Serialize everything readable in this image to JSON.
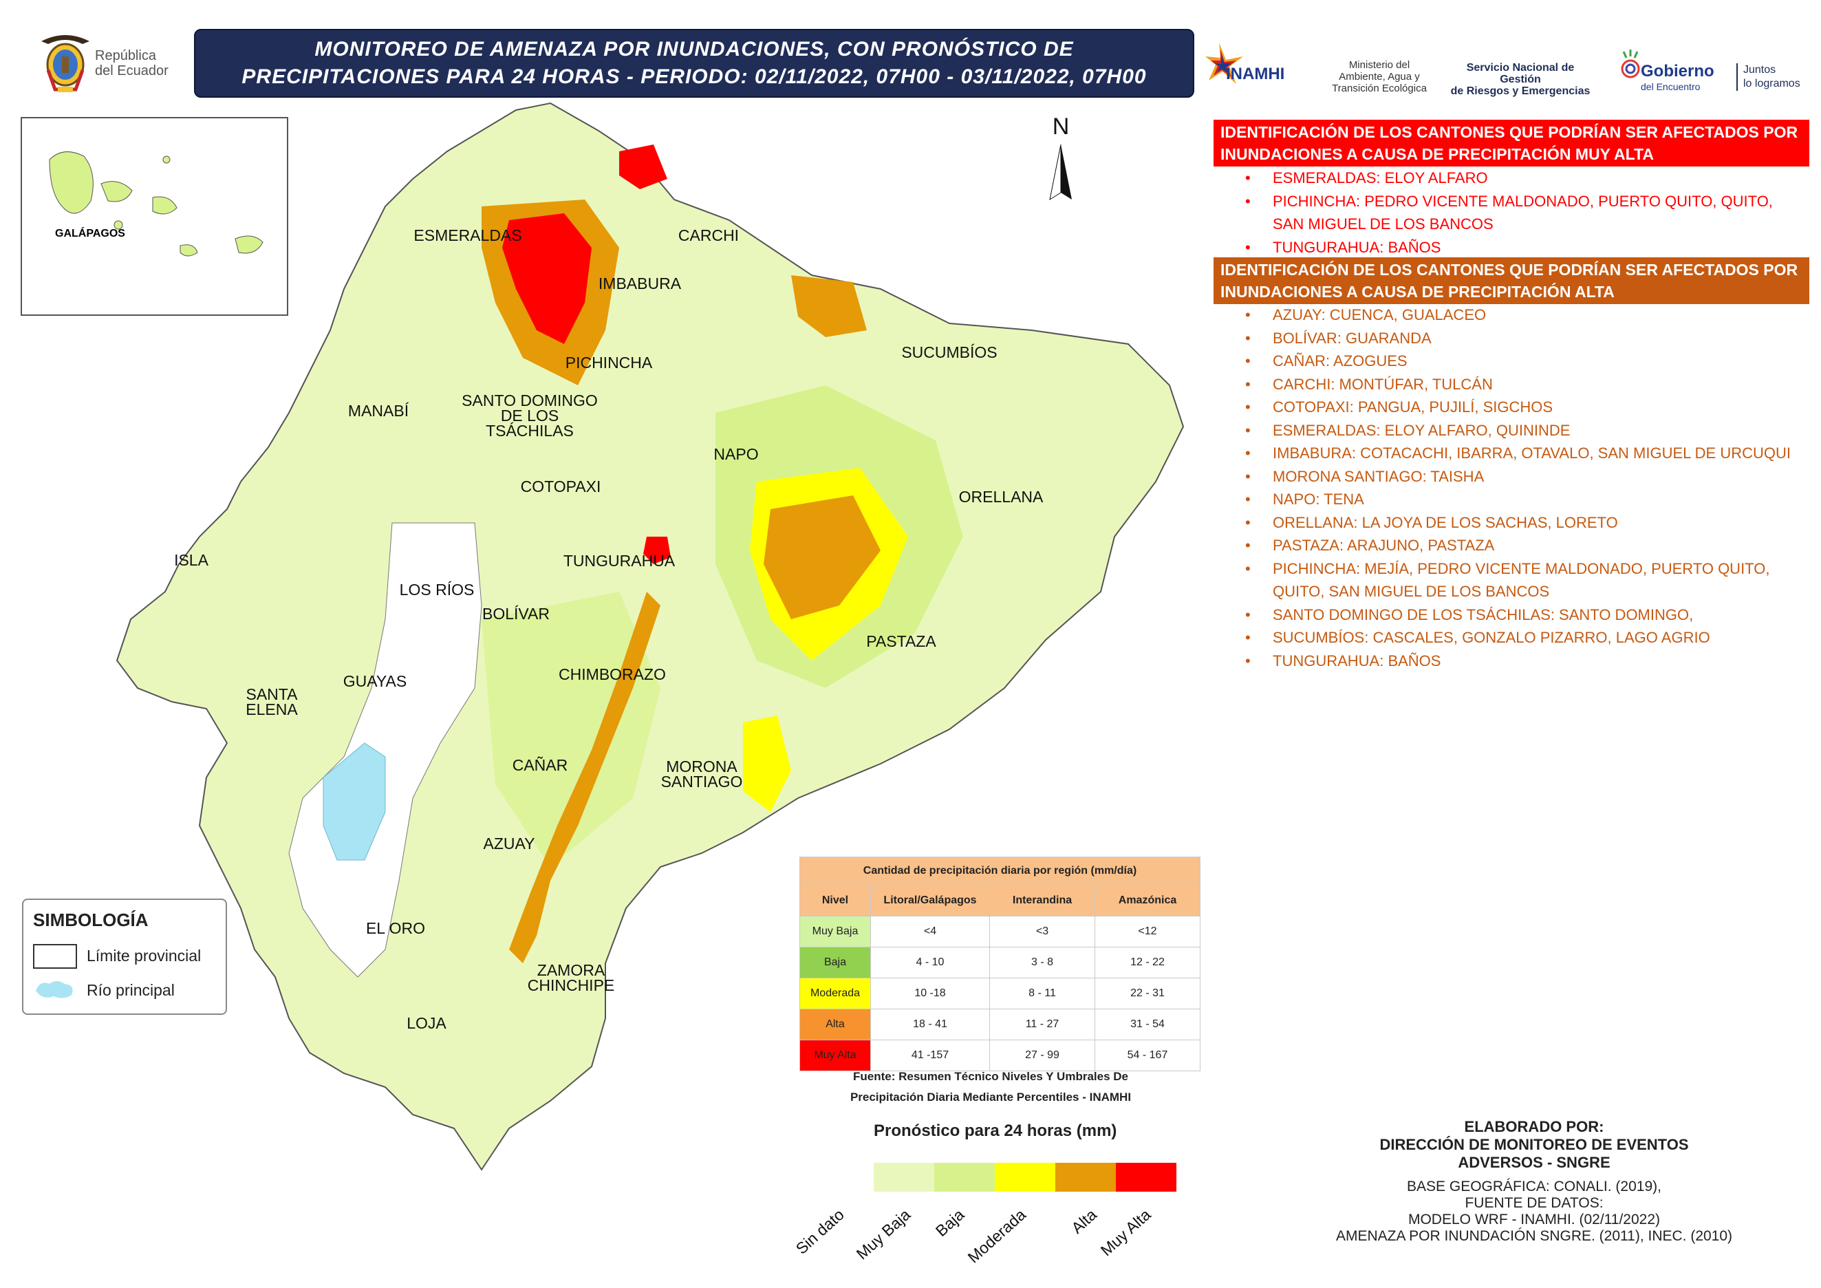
{
  "header": {
    "title_line1": "MONITOREO DE AMENAZA POR INUNDACIONES, CON PRONÓSTICO DE",
    "title_line2": "PRECIPITACIONES  PARA 24  HORAS - PERIODO: 02/11/2022, 07H00 - 03/11/2022, 07H00"
  },
  "logos": {
    "republica": [
      "República",
      "del Ecuador"
    ],
    "inamhi": "INAMHI",
    "ministerio": [
      "Ministerio del",
      "Ambiente, Agua y",
      "Transición Ecológica"
    ],
    "sngre": [
      "Servicio Nacional de Gestión",
      "de Riesgos y Emergencias"
    ],
    "gobierno": "Gobierno",
    "gobierno_sub": "del Encuentro",
    "juntos": [
      "Juntos",
      "lo logramos"
    ]
  },
  "map": {
    "north": "N",
    "galapagos": "GALÁPAGOS",
    "provinces": [
      "ESMERALDAS",
      "CARCHI",
      "IMBABURA",
      "SUCUMBÍOS",
      "PICHINCHA",
      "MANABÍ",
      "SANTO DOMINGO",
      "DE LOS",
      "TSÁCHILAS",
      "NAPO",
      "COTOPAXI",
      "ORELLANA",
      "ISLA",
      "TUNGURAHUA",
      "LOS RÍOS",
      "BOLÍVAR",
      "PASTAZA",
      "GUAYAS",
      "SANTA",
      "ELENA",
      "CHIMBORAZO",
      "CAÑAR",
      "MORONA",
      "SANTIAGO",
      "AZUAY",
      "EL ORO",
      "ZAMORA",
      "CHINCHIPE",
      "LOJA"
    ],
    "colors": {
      "muy_baja": "#e9f7bd",
      "baja": "#d7f28d",
      "moderada": "#ffff00",
      "alta": "#e59a08",
      "muy_alta": "#ff0000",
      "river": "#a8e4f4"
    }
  },
  "panel": {
    "header_muy_alta": "IDENTIFICACIÓN DE LOS CANTONES QUE PODRÍAN SER AFECTADOS POR INUNDACIONES A CAUSA DE  PRECIPITACIÓN MUY ALTA",
    "list_muy_alta": [
      "ESMERALDAS: ELOY ALFARO",
      "PICHINCHA: PEDRO VICENTE MALDONADO, PUERTO QUITO, QUITO, SAN MIGUEL DE LOS BANCOS",
      "TUNGURAHUA: BAÑOS"
    ],
    "header_alta": "IDENTIFICACIÓN DE LOS CANTONES QUE PODRÍAN SER AFECTADOS POR INUNDACIONES A CAUSA DE  PRECIPITACIÓN  ALTA",
    "list_alta": [
      "AZUAY: CUENCA, GUALACEO",
      "BOLÍVAR: GUARANDA",
      "CAÑAR: AZOGUES",
      "CARCHI: MONTÚFAR, TULCÁN",
      "COTOPAXI: PANGUA, PUJILÍ, SIGCHOS",
      "ESMERALDAS: ELOY ALFARO, QUININDE",
      "IMBABURA: COTACACHI, IBARRA, OTAVALO, SAN MIGUEL DE URCUQUI",
      "MORONA SANTIAGO: TAISHA",
      "NAPO: TENA",
      "ORELLANA: LA JOYA DE LOS SACHAS, LORETO",
      "PASTAZA: ARAJUNO, PASTAZA",
      "PICHINCHA: MEJÍA, PEDRO VICENTE MALDONADO, PUERTO QUITO, QUITO, SAN MIGUEL DE LOS BANCOS",
      "SANTO DOMINGO DE LOS TSÁCHILAS: SANTO DOMINGO,",
      "SUCUMBÍOS: CASCALES, GONZALO PIZARRO, LAGO AGRIO",
      "TUNGURAHUA: BAÑOS"
    ]
  },
  "table": {
    "title": "Cantidad de precipitación diaria por región (mm/día)",
    "headers": [
      "Nivel",
      "Litoral/Galápagos",
      "Interandina",
      "Amazónica"
    ],
    "rows": [
      {
        "nivel": "Muy Baja",
        "color": "#d2f3a2",
        "litoral": "<4",
        "interandina": "<3",
        "amazonica": "<12"
      },
      {
        "nivel": "Baja",
        "color": "#92d050",
        "litoral": "4 - 10",
        "interandina": "3 - 8",
        "amazonica": "12 - 22"
      },
      {
        "nivel": "Moderada",
        "color": "#ffff00",
        "litoral": "10 -18",
        "interandina": "8 - 11",
        "amazonica": "22 - 31"
      },
      {
        "nivel": "Alta",
        "color": "#f7932f",
        "litoral": "18 - 41",
        "interandina": "11 - 27",
        "amazonica": "31 - 54"
      },
      {
        "nivel": "Muy Alta",
        "color": "#ff0000",
        "litoral": "41 -157",
        "interandina": "27 - 99",
        "amazonica": "54 - 167"
      }
    ],
    "source": [
      "Fuente: Resumen Técnico Niveles Y Umbrales De",
      "Precipitación Diaria Mediante Percentiles - INAMHI"
    ]
  },
  "legend": {
    "title": "Pronóstico para 24 horas (mm)",
    "items": [
      {
        "label": "Sin dato",
        "color": ""
      },
      {
        "label": "Muy Baja",
        "color": "#e9f7bd"
      },
      {
        "label": "Baja",
        "color": "#d7f28d"
      },
      {
        "label": "Moderada",
        "color": "#ffff00"
      },
      {
        "label": "Alta",
        "color": "#e59a08"
      },
      {
        "label": "Muy Alta",
        "color": "#ff0000"
      }
    ]
  },
  "simbologia": {
    "title": "SIMBOLOGÍA",
    "limite": "Límite provincial",
    "rio": "Río principal"
  },
  "credits": {
    "head": [
      "ELABORADO POR:",
      "DIRECCIÓN DE MONITOREO DE EVENTOS",
      "ADVERSOS - SNGRE"
    ],
    "body": [
      "BASE GEOGRÁFICA: CONALI. (2019),",
      "FUENTE DE DATOS:",
      "MODELO WRF - INAMHI. (02/11/2022)",
      "AMENAZA POR INUNDACIÓN SNGRE. (2011), INEC. (2010)"
    ]
  }
}
